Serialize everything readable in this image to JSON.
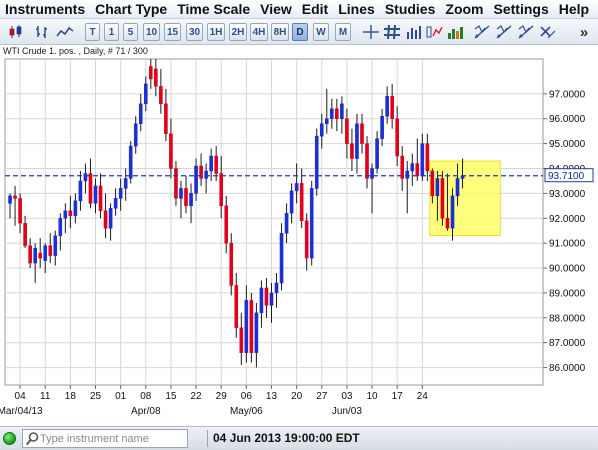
{
  "menu": [
    "Instruments",
    "Chart Type",
    "Time Scale",
    "View",
    "Edit",
    "Lines",
    "Studies",
    "Zoom",
    "Settings",
    "Help"
  ],
  "toolbar": {
    "timeframes": [
      "T",
      "1",
      "5",
      "10",
      "15",
      "30",
      "1H",
      "2H",
      "4H",
      "8H",
      "D",
      "W",
      "M"
    ],
    "active_timeframe": "D",
    "more_label": "»"
  },
  "chart": {
    "header": "WTI Crude 1. pos. , Daily, # 71 / 300",
    "current_price_label": "93.7100",
    "x_date_labels": [
      "Mar/04/13",
      "Apr/08",
      "May/06",
      "Jun/03"
    ],
    "colors": {
      "up": "#1c2fd0",
      "down": "#e0001b",
      "highlight": "#ffff66",
      "price_line": "#1f3da8",
      "grid": "#d7d7d7"
    }
  },
  "chart_data": {
    "type": "candlestick",
    "y_ticks": [
      "86.0000",
      "87.0000",
      "88.0000",
      "89.0000",
      "90.0000",
      "91.0000",
      "92.0000",
      "93.0000",
      "94.0000",
      "95.0000",
      "96.0000",
      "97.0000"
    ],
    "ylim": [
      85.3,
      98.4
    ],
    "x_ticks": [
      "04",
      "11",
      "18",
      "25",
      "01",
      "08",
      "15",
      "22",
      "29",
      "06",
      "13",
      "20",
      "27",
      "03",
      "10",
      "17",
      "24"
    ],
    "xlim": [
      0,
      107
    ],
    "current_price": 93.71,
    "highlight_zone": {
      "x_start": 84.5,
      "x_end": 98.5,
      "y_low": 91.3,
      "y_high": 94.3
    },
    "candles": [
      {
        "x": 1,
        "o": 92.6,
        "h": 93.0,
        "l": 92.0,
        "c": 92.9
      },
      {
        "x": 2,
        "o": 92.9,
        "h": 93.3,
        "l": 91.7,
        "c": 92.8
      },
      {
        "x": 3,
        "o": 92.8,
        "h": 93.0,
        "l": 91.4,
        "c": 91.8
      },
      {
        "x": 4,
        "o": 91.8,
        "h": 92.1,
        "l": 90.8,
        "c": 90.9
      },
      {
        "x": 5,
        "o": 90.9,
        "h": 91.2,
        "l": 90.0,
        "c": 90.2
      },
      {
        "x": 6,
        "o": 90.2,
        "h": 91.0,
        "l": 89.4,
        "c": 90.8
      },
      {
        "x": 7,
        "o": 90.6,
        "h": 91.2,
        "l": 90.0,
        "c": 90.4
      },
      {
        "x": 8,
        "o": 90.3,
        "h": 91.0,
        "l": 89.8,
        "c": 90.9
      },
      {
        "x": 9,
        "o": 90.9,
        "h": 91.4,
        "l": 90.2,
        "c": 90.5
      },
      {
        "x": 10,
        "o": 90.5,
        "h": 91.5,
        "l": 90.1,
        "c": 91.3
      },
      {
        "x": 11,
        "o": 91.3,
        "h": 92.2,
        "l": 90.7,
        "c": 92.0
      },
      {
        "x": 12,
        "o": 92.0,
        "h": 92.6,
        "l": 91.4,
        "c": 92.3
      },
      {
        "x": 13,
        "o": 92.3,
        "h": 92.9,
        "l": 91.6,
        "c": 92.1
      },
      {
        "x": 14,
        "o": 92.1,
        "h": 93.0,
        "l": 91.8,
        "c": 92.7
      },
      {
        "x": 15,
        "o": 92.7,
        "h": 93.9,
        "l": 92.3,
        "c": 93.5
      },
      {
        "x": 16,
        "o": 93.5,
        "h": 94.2,
        "l": 93.0,
        "c": 93.8
      },
      {
        "x": 17,
        "o": 93.8,
        "h": 94.4,
        "l": 92.4,
        "c": 92.6
      },
      {
        "x": 18,
        "o": 92.6,
        "h": 93.6,
        "l": 92.2,
        "c": 93.3
      },
      {
        "x": 19,
        "o": 93.3,
        "h": 93.8,
        "l": 92.0,
        "c": 92.3
      },
      {
        "x": 20,
        "o": 92.3,
        "h": 93.0,
        "l": 91.2,
        "c": 91.6
      },
      {
        "x": 21,
        "o": 91.6,
        "h": 92.6,
        "l": 91.1,
        "c": 92.4
      },
      {
        "x": 22,
        "o": 92.4,
        "h": 93.2,
        "l": 92.1,
        "c": 92.8
      },
      {
        "x": 23,
        "o": 92.8,
        "h": 93.6,
        "l": 92.3,
        "c": 93.2
      },
      {
        "x": 24,
        "o": 93.2,
        "h": 94.0,
        "l": 92.7,
        "c": 93.6
      },
      {
        "x": 25,
        "o": 93.6,
        "h": 95.1,
        "l": 93.4,
        "c": 94.9
      },
      {
        "x": 26,
        "o": 94.9,
        "h": 96.1,
        "l": 94.6,
        "c": 95.8
      },
      {
        "x": 27,
        "o": 95.8,
        "h": 97.0,
        "l": 95.5,
        "c": 96.6
      },
      {
        "x": 28,
        "o": 96.6,
        "h": 97.7,
        "l": 96.3,
        "c": 97.4
      },
      {
        "x": 29,
        "o": 98.1,
        "h": 98.4,
        "l": 97.2,
        "c": 97.6
      },
      {
        "x": 30,
        "o": 98.0,
        "h": 98.4,
        "l": 96.9,
        "c": 97.3
      },
      {
        "x": 31,
        "o": 97.3,
        "h": 98.0,
        "l": 96.2,
        "c": 96.6
      },
      {
        "x": 32,
        "o": 96.6,
        "h": 97.2,
        "l": 95.1,
        "c": 95.4
      },
      {
        "x": 33,
        "o": 95.4,
        "h": 96.0,
        "l": 93.6,
        "c": 94.0
      },
      {
        "x": 34,
        "o": 94.0,
        "h": 94.3,
        "l": 92.5,
        "c": 92.8
      },
      {
        "x": 35,
        "o": 92.8,
        "h": 93.5,
        "l": 92.0,
        "c": 93.2
      },
      {
        "x": 36,
        "o": 93.2,
        "h": 93.7,
        "l": 92.2,
        "c": 92.5
      },
      {
        "x": 37,
        "o": 92.5,
        "h": 93.4,
        "l": 91.8,
        "c": 93.0
      },
      {
        "x": 38,
        "o": 93.0,
        "h": 94.4,
        "l": 92.7,
        "c": 94.1
      },
      {
        "x": 39,
        "o": 94.1,
        "h": 94.6,
        "l": 93.3,
        "c": 93.6
      },
      {
        "x": 40,
        "o": 93.6,
        "h": 94.2,
        "l": 93.0,
        "c": 93.9
      },
      {
        "x": 41,
        "o": 93.9,
        "h": 94.8,
        "l": 93.5,
        "c": 94.5
      },
      {
        "x": 42,
        "o": 94.5,
        "h": 94.9,
        "l": 93.5,
        "c": 93.8
      },
      {
        "x": 43,
        "o": 93.8,
        "h": 94.5,
        "l": 92.0,
        "c": 92.5
      },
      {
        "x": 44,
        "o": 92.5,
        "h": 92.9,
        "l": 90.6,
        "c": 91.0
      },
      {
        "x": 45,
        "o": 91.0,
        "h": 91.4,
        "l": 88.9,
        "c": 89.3
      },
      {
        "x": 46,
        "o": 89.3,
        "h": 89.8,
        "l": 87.2,
        "c": 87.6
      },
      {
        "x": 47,
        "o": 87.6,
        "h": 88.2,
        "l": 86.1,
        "c": 86.6
      },
      {
        "x": 48,
        "o": 86.6,
        "h": 89.3,
        "l": 86.2,
        "c": 88.7
      },
      {
        "x": 49,
        "o": 88.7,
        "h": 89.0,
        "l": 86.2,
        "c": 86.6
      },
      {
        "x": 50,
        "o": 86.6,
        "h": 88.6,
        "l": 86.0,
        "c": 88.2
      },
      {
        "x": 51,
        "o": 88.2,
        "h": 89.5,
        "l": 87.6,
        "c": 89.2
      },
      {
        "x": 52,
        "o": 89.2,
        "h": 89.6,
        "l": 88.0,
        "c": 88.5
      },
      {
        "x": 53,
        "o": 88.5,
        "h": 89.4,
        "l": 87.8,
        "c": 89.0
      },
      {
        "x": 54,
        "o": 89.0,
        "h": 89.8,
        "l": 88.4,
        "c": 89.4
      },
      {
        "x": 55,
        "o": 89.4,
        "h": 91.8,
        "l": 89.1,
        "c": 91.4
      },
      {
        "x": 56,
        "o": 91.4,
        "h": 92.6,
        "l": 91.0,
        "c": 92.2
      },
      {
        "x": 57,
        "o": 92.2,
        "h": 93.4,
        "l": 91.8,
        "c": 93.1
      },
      {
        "x": 58,
        "o": 93.1,
        "h": 94.2,
        "l": 92.6,
        "c": 93.4
      },
      {
        "x": 59,
        "o": 93.4,
        "h": 94.0,
        "l": 91.6,
        "c": 91.9
      },
      {
        "x": 60,
        "o": 91.9,
        "h": 92.2,
        "l": 89.9,
        "c": 90.4
      },
      {
        "x": 61,
        "o": 90.4,
        "h": 93.5,
        "l": 90.1,
        "c": 93.2
      },
      {
        "x": 62,
        "o": 93.2,
        "h": 95.6,
        "l": 92.9,
        "c": 95.3
      },
      {
        "x": 63,
        "o": 95.3,
        "h": 96.2,
        "l": 94.8,
        "c": 95.8
      },
      {
        "x": 64,
        "o": 95.8,
        "h": 97.2,
        "l": 95.4,
        "c": 96.0
      },
      {
        "x": 65,
        "o": 96.0,
        "h": 96.8,
        "l": 95.6,
        "c": 96.4
      },
      {
        "x": 66,
        "o": 96.4,
        "h": 96.8,
        "l": 95.5,
        "c": 96.0
      },
      {
        "x": 67,
        "o": 96.0,
        "h": 96.9,
        "l": 95.4,
        "c": 96.6
      },
      {
        "x": 68,
        "o": 96.0,
        "h": 96.4,
        "l": 94.4,
        "c": 95.0
      },
      {
        "x": 69,
        "o": 95.0,
        "h": 95.6,
        "l": 93.9,
        "c": 94.4
      },
      {
        "x": 70,
        "o": 94.4,
        "h": 96.2,
        "l": 93.8,
        "c": 95.8
      },
      {
        "x": 71,
        "o": 95.8,
        "h": 96.2,
        "l": 94.6,
        "c": 95.0
      },
      {
        "x": 72,
        "o": 95.0,
        "h": 95.3,
        "l": 93.2,
        "c": 93.6
      },
      {
        "x": 73,
        "o": 93.6,
        "h": 94.2,
        "l": 92.2,
        "c": 94.0
      },
      {
        "x": 74,
        "o": 94.0,
        "h": 95.5,
        "l": 93.8,
        "c": 95.2
      },
      {
        "x": 75,
        "o": 95.2,
        "h": 96.4,
        "l": 94.9,
        "c": 96.1
      },
      {
        "x": 76,
        "o": 96.1,
        "h": 97.3,
        "l": 95.8,
        "c": 96.9
      },
      {
        "x": 77,
        "o": 96.9,
        "h": 97.4,
        "l": 95.6,
        "c": 96.0
      },
      {
        "x": 78,
        "o": 96.0,
        "h": 96.5,
        "l": 94.1,
        "c": 94.5
      },
      {
        "x": 79,
        "o": 94.5,
        "h": 94.9,
        "l": 93.1,
        "c": 93.6
      },
      {
        "x": 80,
        "o": 93.6,
        "h": 94.3,
        "l": 92.2,
        "c": 93.9
      },
      {
        "x": 81,
        "o": 93.9,
        "h": 94.6,
        "l": 93.3,
        "c": 94.2
      },
      {
        "x": 82,
        "o": 94.2,
        "h": 95.2,
        "l": 93.5,
        "c": 93.7
      },
      {
        "x": 83,
        "o": 93.7,
        "h": 95.4,
        "l": 93.5,
        "c": 95.0
      },
      {
        "x": 84,
        "o": 95.0,
        "h": 95.4,
        "l": 93.5,
        "c": 93.9
      },
      {
        "x": 85,
        "o": 93.9,
        "h": 94.0,
        "l": 92.6,
        "c": 92.9
      },
      {
        "x": 86,
        "o": 92.9,
        "h": 93.9,
        "l": 91.9,
        "c": 93.6
      },
      {
        "x": 87,
        "o": 93.6,
        "h": 93.9,
        "l": 91.7,
        "c": 92.0
      },
      {
        "x": 88,
        "o": 92.0,
        "h": 93.8,
        "l": 91.5,
        "c": 91.6
      },
      {
        "x": 89,
        "o": 91.6,
        "h": 93.2,
        "l": 91.1,
        "c": 92.9
      },
      {
        "x": 90,
        "o": 92.9,
        "h": 94.2,
        "l": 92.5,
        "c": 93.6
      },
      {
        "x": 91,
        "o": 93.6,
        "h": 94.4,
        "l": 93.2,
        "c": 93.7
      }
    ]
  },
  "status": {
    "search_placeholder": "Type instrument name",
    "datetime": "04 Jun 2013 19:00:00 EDT"
  }
}
